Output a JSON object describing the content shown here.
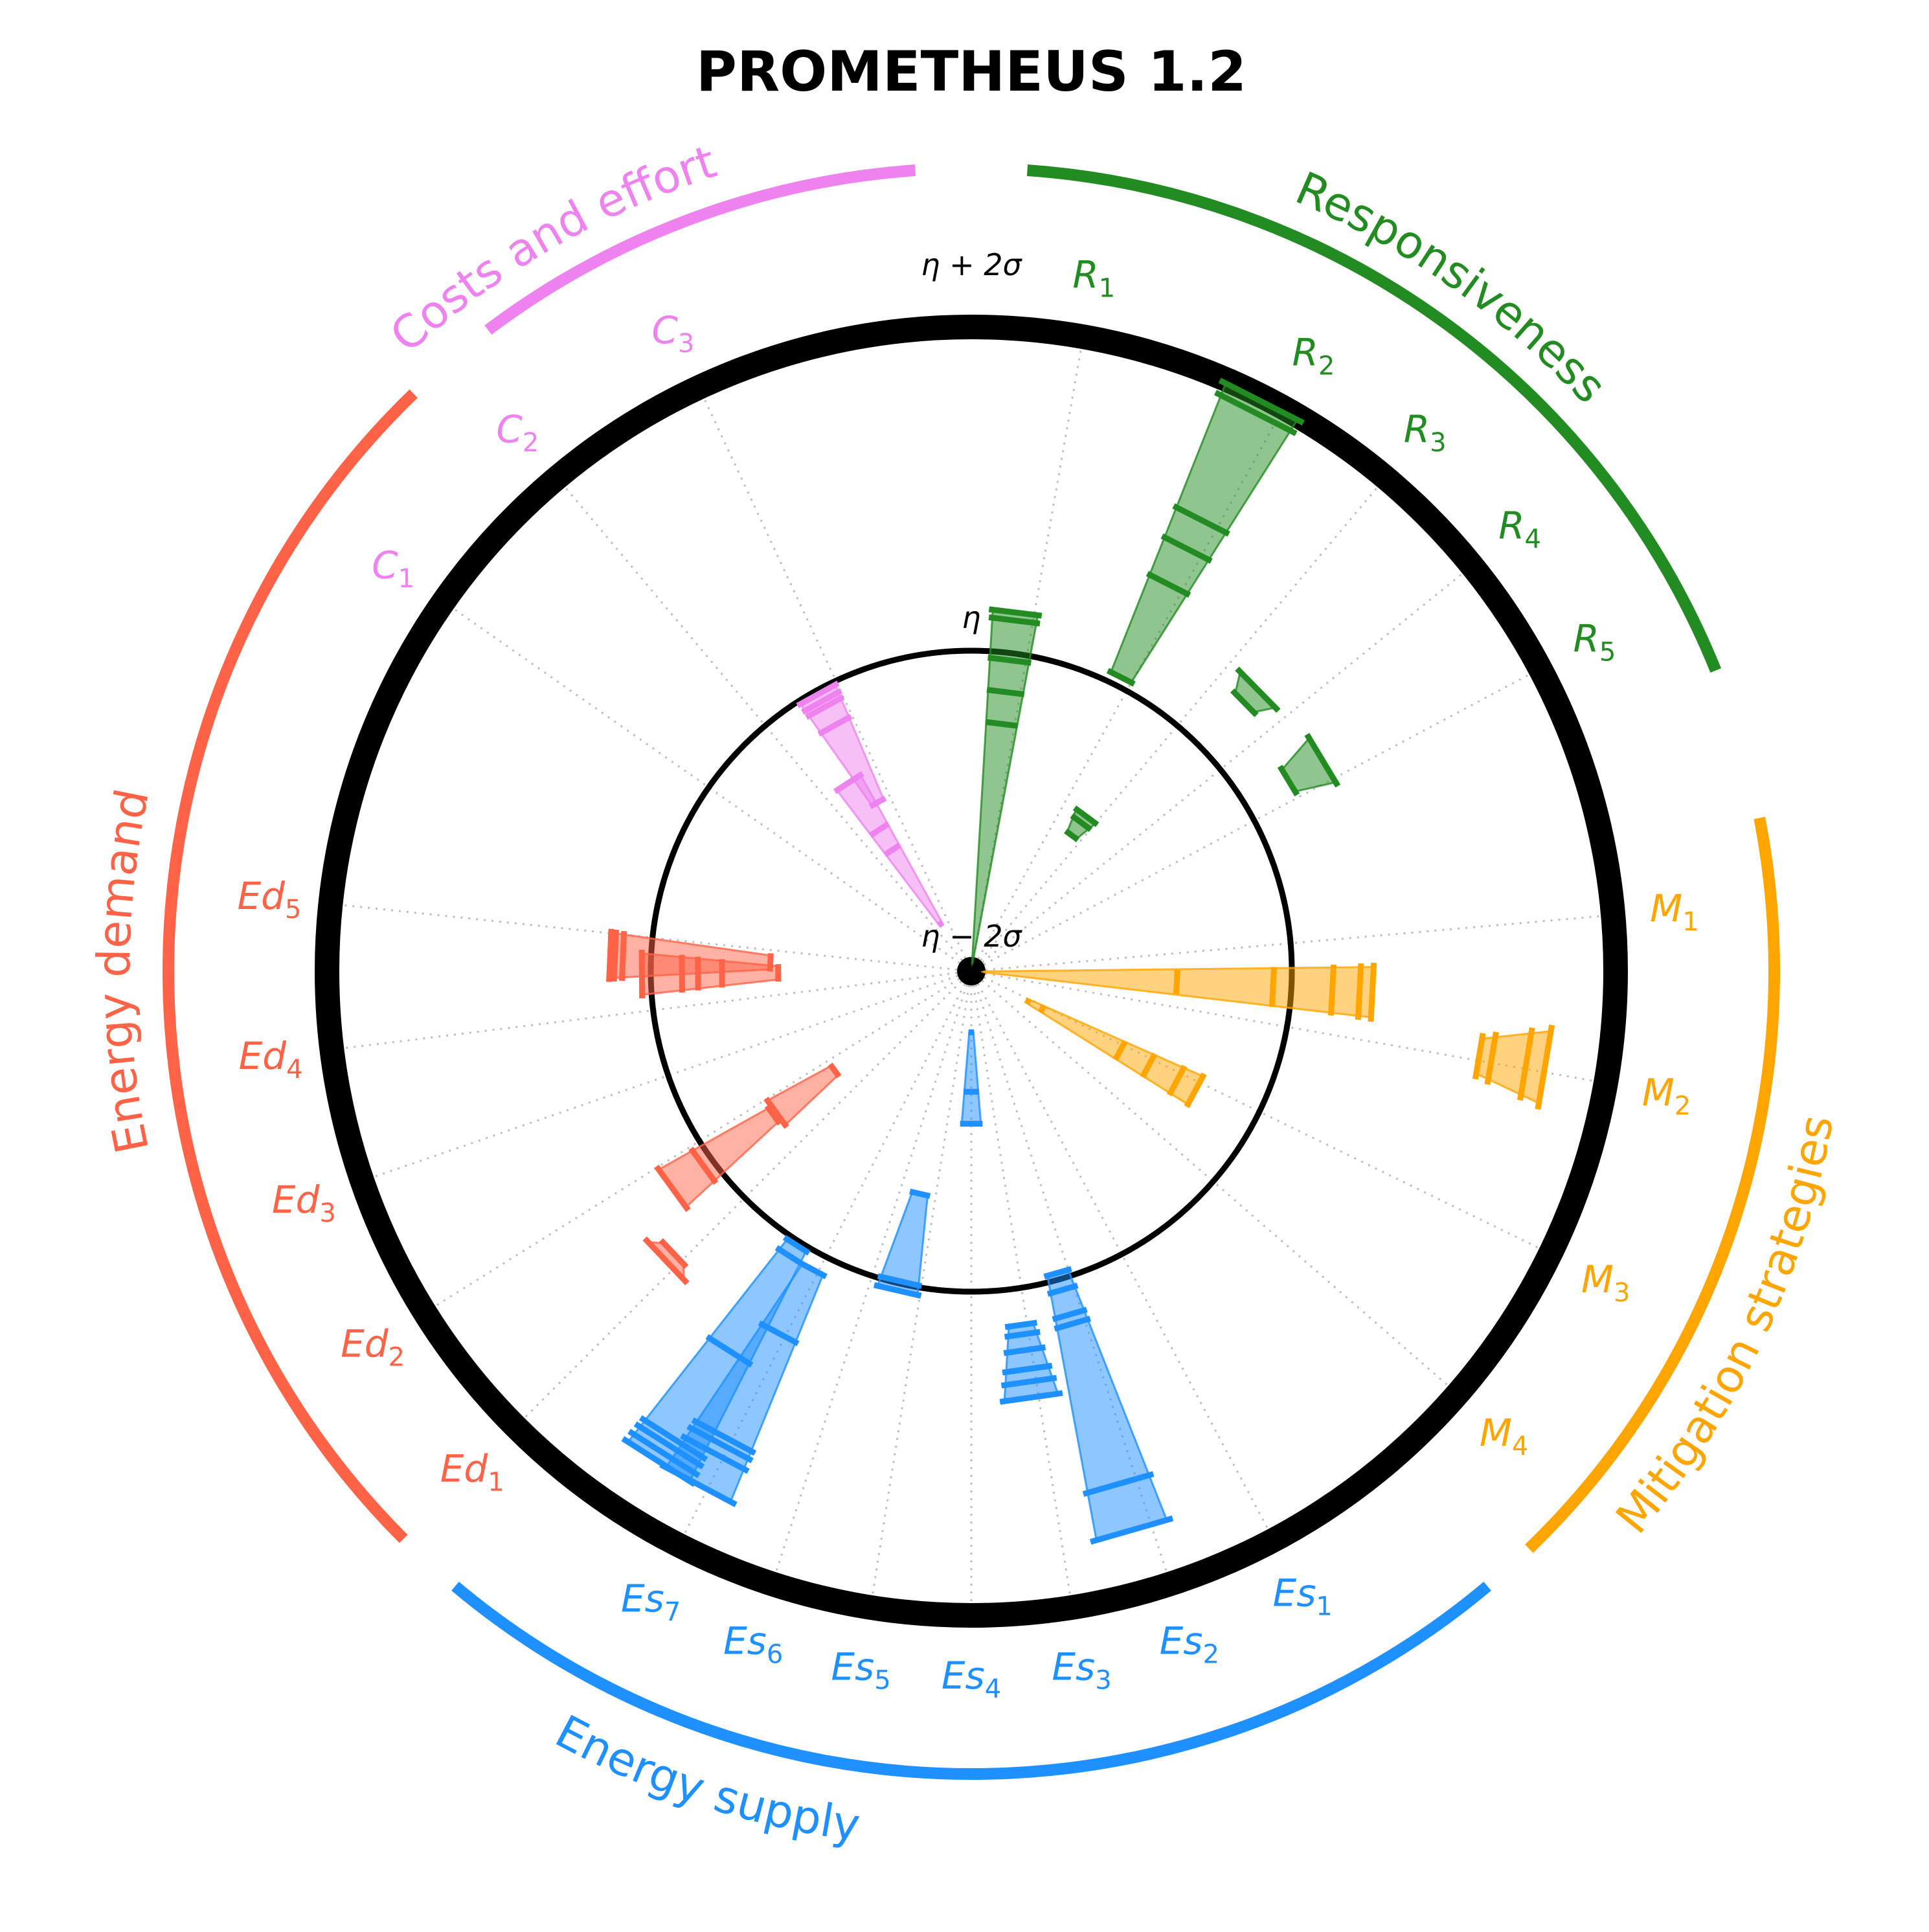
{
  "chart_data": {
    "type": "radial-bar",
    "title": "PROMETHEUS 1.2",
    "rings": {
      "outer": {
        "label": "η + 2σ",
        "value": 2
      },
      "middle": {
        "label": "η",
        "value": 0
      },
      "center": {
        "label": "η − 2σ",
        "value": -2
      }
    },
    "groups": [
      {
        "name": "Responsiveness",
        "color": "#228b22",
        "spokes": [
          {
            "base": "R",
            "sub": "1",
            "values": [
              -1.95,
              -0.45,
              -0.25,
              -0.05,
              0.2,
              0.25
            ]
          },
          {
            "base": "R",
            "sub": "2",
            "values": [
              0.05,
              0.7,
              0.95,
              1.15,
              1.9,
              1.98
            ]
          },
          {
            "base": "R",
            "sub": "3",
            "values": [
              -0.95,
              -0.85,
              -0.8
            ]
          },
          {
            "base": "R",
            "sub": "4",
            "values": [
              0.38,
              0.5
            ]
          },
          {
            "base": "R",
            "sub": "5",
            "values": [
              0.3,
              0.55
            ]
          }
        ]
      },
      {
        "name": "Mitigation strategies",
        "color": "#ffa500",
        "spokes": [
          {
            "base": "M",
            "sub": "1",
            "values": [
              -1.92,
              -0.72,
              -0.12,
              0.25,
              0.42,
              0.5
            ]
          },
          {
            "base": "M",
            "sub": "2",
            "values": [
              1.2,
              1.28,
              1.5,
              1.62
            ]
          },
          {
            "base": "M",
            "sub": "3",
            "values": [
              -1.6,
              -1.5,
              -0.95,
              -0.75,
              -0.55,
              -0.42
            ]
          }
        ]
      },
      {
        "name": "Energy supply",
        "color": "#1e90ff",
        "spokes": [
          {
            "base": "Es",
            "sub": "2",
            "values": [
              -0.05,
              0.06,
              0.22,
              0.28,
              1.32,
              1.62
            ]
          },
          {
            "base": "Es",
            "sub": "3",
            "values": [
              0.22,
              0.28,
              0.38,
              0.5,
              0.58,
              0.68
            ]
          },
          {
            "base": "Es",
            "sub": "4",
            "values": [
              -1.62,
              -1.25,
              -1.05
            ]
          },
          {
            "base": "Es",
            "sub": "5",
            "values": [
              -0.58,
              -0.02,
              0.04
            ]
          },
          {
            "base": "Es",
            "sub": "6",
            "values": [
              0.1,
              0.55,
              1.28,
              1.33,
              1.4,
              1.62
            ]
          },
          {
            "base": "Es",
            "sub": "7",
            "values": [
              0.02,
              0.1,
              0.8,
              1.45,
              1.5,
              1.56,
              1.62
            ]
          }
        ]
      },
      {
        "name": "Energy demand",
        "color": "#ff6347",
        "spokes": [
          {
            "base": "Ed",
            "sub": "2",
            "values": [
              0.55,
              0.62
            ]
          },
          {
            "base": "Ed",
            "sub": "3",
            "values": [
              -0.95,
              -0.5
            ]
          },
          {
            "base": "Ed",
            "sub": "3",
            "values": [
              -0.48,
              0.06,
              0.3
            ]
          },
          {
            "base": "Ed",
            "sub": "4",
            "values": [
              -0.8,
              -0.45,
              -0.3,
              -0.2,
              0.05,
              0.05
            ]
          },
          {
            "base": "Ed",
            "sub": "5",
            "values": [
              -0.75,
              0.17,
              0.25,
              0.22
            ]
          }
        ]
      },
      {
        "name": "Costs and effort",
        "color": "#ee82ee",
        "spokes": [
          {
            "base": "C",
            "sub": "2",
            "values": [
              -1.65,
              -1.1,
              -0.95,
              -0.6
            ]
          },
          {
            "base": "C",
            "sub": "3",
            "values": [
              -0.8,
              -0.25,
              -0.12,
              -0.08,
              -0.03
            ]
          }
        ]
      }
    ],
    "axis_labels": [
      {
        "base": "R",
        "sub": "1",
        "group": 0
      },
      {
        "base": "R",
        "sub": "2",
        "group": 0
      },
      {
        "base": "R",
        "sub": "3",
        "group": 0
      },
      {
        "base": "R",
        "sub": "4",
        "group": 0
      },
      {
        "base": "R",
        "sub": "5",
        "group": 0
      },
      {
        "base": "M",
        "sub": "1",
        "group": 1
      },
      {
        "base": "M",
        "sub": "2",
        "group": 1
      },
      {
        "base": "M",
        "sub": "3",
        "group": 1
      },
      {
        "base": "M",
        "sub": "4",
        "group": 1
      },
      {
        "base": "Es",
        "sub": "1",
        "group": 2
      },
      {
        "base": "Es",
        "sub": "2",
        "group": 2
      },
      {
        "base": "Es",
        "sub": "3",
        "group": 2
      },
      {
        "base": "Es",
        "sub": "4",
        "group": 2
      },
      {
        "base": "Es",
        "sub": "5",
        "group": 2
      },
      {
        "base": "Es",
        "sub": "6",
        "group": 2
      },
      {
        "base": "Es",
        "sub": "7",
        "group": 2
      },
      {
        "base": "Ed",
        "sub": "1",
        "group": 3
      },
      {
        "base": "Ed",
        "sub": "2",
        "group": 3
      },
      {
        "base": "Ed",
        "sub": "3",
        "group": 3
      },
      {
        "base": "Ed",
        "sub": "4",
        "group": 3
      },
      {
        "base": "Ed",
        "sub": "5",
        "group": 3
      },
      {
        "base": "C",
        "sub": "1",
        "group": 4
      },
      {
        "base": "C",
        "sub": "2",
        "group": 4
      },
      {
        "base": "C",
        "sub": "3",
        "group": 4
      }
    ],
    "grid": true,
    "legend": "none"
  }
}
